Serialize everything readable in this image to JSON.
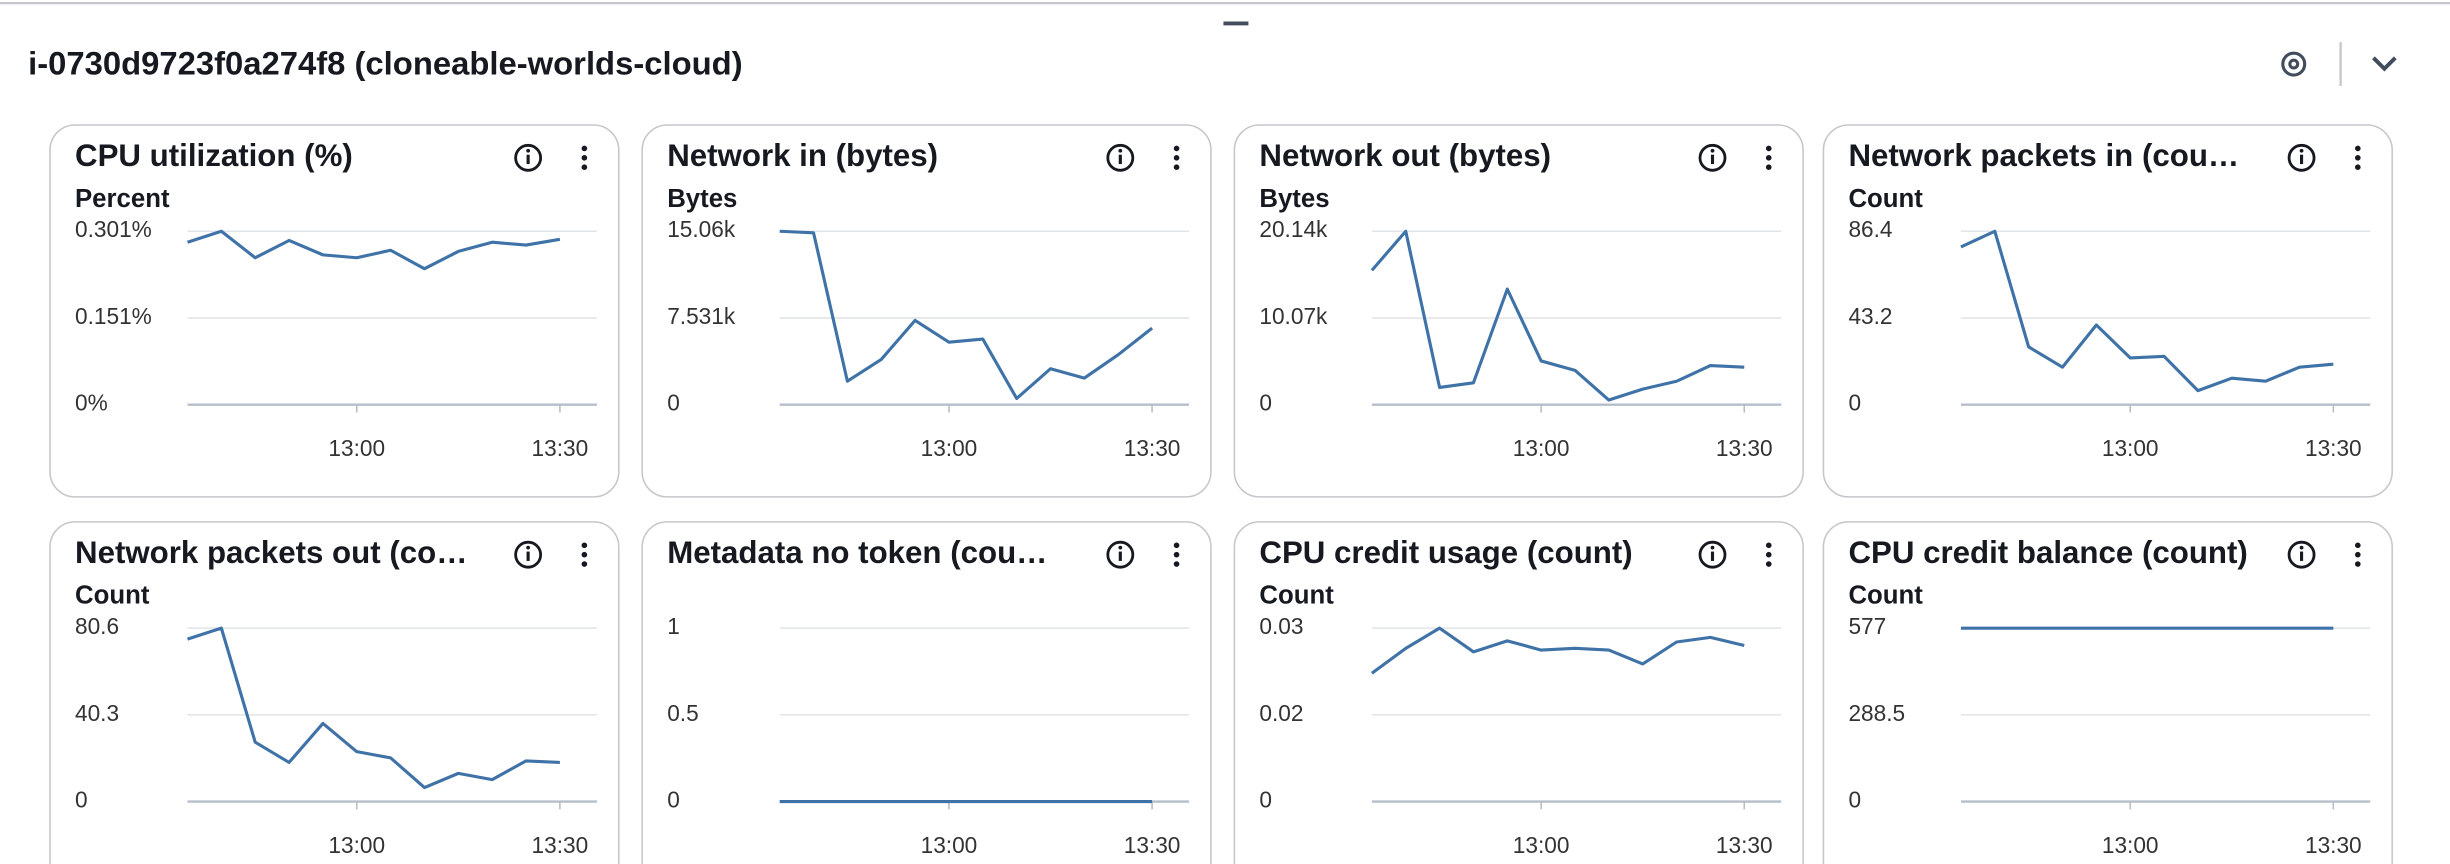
{
  "header": {
    "title": "i-0730d9723f0a274f8 (cloneable-worlds-cloud)"
  },
  "chart_data": [
    {
      "type": "line",
      "title": "CPU utilization (%)",
      "y_label": "Percent",
      "x": [
        "12:35",
        "12:40",
        "12:45",
        "12:50",
        "12:55",
        "13:00",
        "13:05",
        "13:10",
        "13:15",
        "13:20",
        "13:25",
        "13:30"
      ],
      "values": [
        0.282,
        0.301,
        0.255,
        0.285,
        0.26,
        0.255,
        0.268,
        0.236,
        0.266,
        0.282,
        0.277,
        0.287
      ],
      "color": "#3f73a8",
      "xlim": [
        "12:35",
        "13:35"
      ],
      "xticks": [
        "13:00",
        "13:30"
      ],
      "ylim": [
        0,
        0.301
      ],
      "yticks": [
        {
          "value": 0,
          "label": "0%"
        },
        {
          "value": 0.1505,
          "label": "0.151%"
        },
        {
          "value": 0.301,
          "label": "0.301%"
        }
      ],
      "grid": true
    },
    {
      "type": "line",
      "title": "Network in (bytes)",
      "y_label": "Bytes",
      "x": [
        "12:35",
        "12:40",
        "12:45",
        "12:50",
        "12:55",
        "13:00",
        "13:05",
        "13:10",
        "13:15",
        "13:20",
        "13:25",
        "13:30"
      ],
      "values": [
        15060,
        14920,
        2040,
        3930,
        7320,
        5430,
        5700,
        540,
        3120,
        2310,
        4340,
        6650
      ],
      "color": "#3f73a8",
      "xlim": [
        "12:35",
        "13:35"
      ],
      "xticks": [
        "13:00",
        "13:30"
      ],
      "ylim": [
        0,
        15060
      ],
      "yticks": [
        0,
        {
          "value": 7531,
          "label": "7.531k"
        },
        {
          "value": 15060,
          "label": "15.06k"
        }
      ],
      "grid": true
    },
    {
      "type": "line",
      "title": "Network out (bytes)",
      "y_label": "Bytes",
      "x": [
        "12:35",
        "12:40",
        "12:45",
        "12:50",
        "12:55",
        "13:00",
        "13:05",
        "13:10",
        "13:15",
        "13:20",
        "13:25",
        "13:30"
      ],
      "values": [
        15600,
        20140,
        2000,
        2540,
        13420,
        5080,
        3990,
        540,
        1810,
        2720,
        4540,
        4350
      ],
      "color": "#3f73a8",
      "xlim": [
        "12:35",
        "13:35"
      ],
      "xticks": [
        "13:00",
        "13:30"
      ],
      "ylim": [
        0,
        20140
      ],
      "yticks": [
        0,
        {
          "value": 10070,
          "label": "10.07k"
        },
        {
          "value": 20140,
          "label": "20.14k"
        }
      ],
      "grid": true
    },
    {
      "type": "line",
      "title": "Network packets in (cou…",
      "y_label": "Count",
      "x": [
        "12:35",
        "12:40",
        "12:45",
        "12:50",
        "12:55",
        "13:00",
        "13:05",
        "13:10",
        "13:15",
        "13:20",
        "13:25",
        "13:30"
      ],
      "values": [
        78.6,
        86.4,
        28.8,
        18.7,
        39.7,
        23.3,
        24.1,
        7.0,
        13.2,
        11.7,
        18.7,
        20.2
      ],
      "color": "#3f73a8",
      "xlim": [
        "12:35",
        "13:35"
      ],
      "xticks": [
        "13:00",
        "13:30"
      ],
      "ylim": [
        0,
        86.4
      ],
      "yticks": [
        0,
        43.2,
        86.4
      ],
      "grid": true
    },
    {
      "type": "line",
      "title": "Network packets out (co…",
      "y_label": "Count",
      "x": [
        "12:35",
        "12:40",
        "12:45",
        "12:50",
        "12:55",
        "13:00",
        "13:05",
        "13:10",
        "13:15",
        "13:20",
        "13:25",
        "13:30"
      ],
      "values": [
        75.5,
        80.6,
        27.6,
        18.2,
        36.3,
        23.2,
        20.3,
        6.5,
        13.1,
        10.2,
        18.9,
        18.2
      ],
      "color": "#3f73a8",
      "xlim": [
        "12:35",
        "13:35"
      ],
      "xticks": [
        "13:00",
        "13:30"
      ],
      "ylim": [
        0,
        80.6
      ],
      "yticks": [
        0,
        40.3,
        80.6
      ],
      "grid": true
    },
    {
      "type": "line",
      "title": "Metadata no token (cou…",
      "x": [
        "12:35",
        "12:40",
        "12:45",
        "12:50",
        "12:55",
        "13:00",
        "13:05",
        "13:10",
        "13:15",
        "13:20",
        "13:25",
        "13:30"
      ],
      "values": [
        0,
        0,
        0,
        0,
        0,
        0,
        0,
        0,
        0,
        0,
        0,
        0
      ],
      "color": "#3f73a8",
      "xlim": [
        "12:35",
        "13:35"
      ],
      "xticks": [
        "13:00",
        "13:30"
      ],
      "ylim": [
        0,
        1
      ],
      "yticks": [
        0,
        0.5,
        1
      ],
      "grid": true
    },
    {
      "type": "line",
      "title": "CPU credit usage (count)",
      "y_label": "Count",
      "x": [
        "12:35",
        "12:40",
        "12:45",
        "12:50",
        "12:55",
        "13:00",
        "13:05",
        "13:10",
        "13:15",
        "13:20",
        "13:25",
        "13:30"
      ],
      "values": [
        0.0222,
        0.0265,
        0.03,
        0.0259,
        0.0278,
        0.0262,
        0.0265,
        0.0262,
        0.0238,
        0.0276,
        0.0284,
        0.027
      ],
      "color": "#3f73a8",
      "xlim": [
        "12:35",
        "13:35"
      ],
      "xticks": [
        "13:00",
        "13:30"
      ],
      "ylim": [
        0,
        0.03
      ],
      "yticks": [
        0,
        {
          "value": 0.015,
          "label": "0.02"
        },
        0.03
      ],
      "grid": true
    },
    {
      "type": "line",
      "title": "CPU credit balance (count)",
      "y_label": "Count",
      "x": [
        "12:35",
        "12:40",
        "12:45",
        "12:50",
        "12:55",
        "13:00",
        "13:05",
        "13:10",
        "13:15",
        "13:20",
        "13:25",
        "13:30"
      ],
      "values": [
        577,
        577,
        577,
        577,
        577,
        577,
        577,
        577,
        577,
        577,
        577,
        577
      ],
      "color": "#3f73a8",
      "xlim": [
        "12:35",
        "13:35"
      ],
      "xticks": [
        "13:00",
        "13:30"
      ],
      "ylim": [
        0,
        577
      ],
      "yticks": [
        0,
        288.5,
        577
      ],
      "grid": true
    }
  ]
}
